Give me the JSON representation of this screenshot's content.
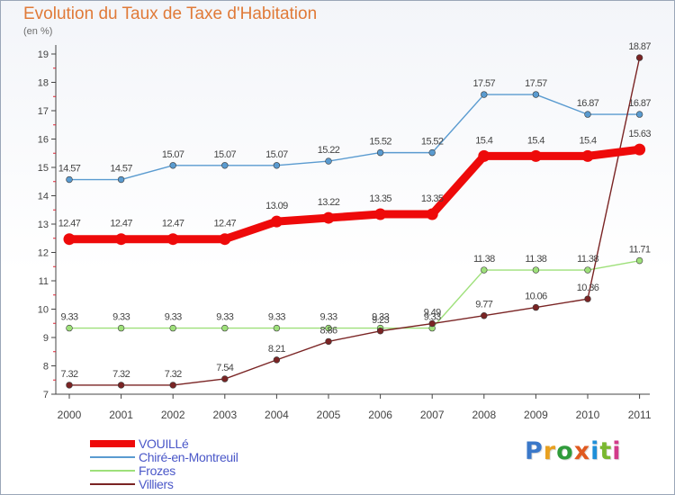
{
  "title": "Evolution du Taux de Taxe d'Habitation",
  "unit": "(en %)",
  "logo": {
    "text": "Proxiti",
    "letter_colors": [
      "#3a78c9",
      "#e8a020",
      "#2f9b3b",
      "#e05a20",
      "#1f8fd8",
      "#7ab830",
      "#d23b8a"
    ]
  },
  "chart_data": {
    "type": "line",
    "x": [
      "2000",
      "2001",
      "2002",
      "2003",
      "2004",
      "2005",
      "2006",
      "2007",
      "2008",
      "2009",
      "2010",
      "2011"
    ],
    "yticks": [
      "7",
      "8",
      "9",
      "10",
      "11",
      "12",
      "13",
      "14",
      "15",
      "16",
      "17",
      "18",
      "19"
    ],
    "ylim": [
      7,
      19
    ],
    "grid": false,
    "legend_position": "bottom-left",
    "series": [
      {
        "name": "Chiré-en-Montreuil",
        "color": "#5a9bd0",
        "values": [
          14.57,
          14.57,
          15.07,
          15.07,
          15.07,
          15.22,
          15.52,
          15.52,
          17.57,
          17.57,
          16.87,
          16.87
        ],
        "labels": [
          "14.57",
          "14.57",
          "15.07",
          "15.07",
          "15.07",
          "15.22",
          "15.52",
          "15.52",
          "17.57",
          "17.57",
          "16.87",
          "16.87"
        ]
      },
      {
        "name": "Frozes",
        "color": "#9ee07a",
        "values": [
          9.33,
          9.33,
          9.33,
          9.33,
          9.33,
          9.33,
          9.33,
          9.33,
          11.38,
          11.38,
          11.38,
          11.71
        ],
        "labels": [
          "9.33",
          "9.33",
          "9.33",
          "9.33",
          "9.33",
          "9.33",
          "9.33",
          "9.33",
          "11.38",
          "11.38",
          "11.38",
          "11.71"
        ]
      },
      {
        "name": "Villiers",
        "color": "#7a2424",
        "values": [
          7.32,
          7.32,
          7.32,
          7.54,
          8.21,
          8.86,
          9.23,
          9.49,
          9.77,
          10.06,
          10.36,
          18.87
        ],
        "labels": [
          "7.32",
          "7.32",
          "7.32",
          "7.54",
          "8.21",
          "8.86",
          "9.23",
          "9.49",
          "9.77",
          "10.06",
          "10.36",
          "18.87"
        ]
      },
      {
        "name": "VOUILLé",
        "color": "#ee0a0a",
        "values": [
          12.47,
          12.47,
          12.47,
          12.47,
          13.09,
          13.22,
          13.35,
          13.35,
          15.4,
          15.4,
          15.4,
          15.63
        ],
        "labels": [
          "12.47",
          "12.47",
          "12.47",
          "12.47",
          "13.09",
          "13.22",
          "13.35",
          "13.35",
          "15.4",
          "15.4",
          "15.4",
          "15.63"
        ]
      }
    ],
    "legend": [
      {
        "name": "VOUILLé",
        "color": "#ee0a0a"
      },
      {
        "name": "Chiré-en-Montreuil",
        "color": "#5a9bd0"
      },
      {
        "name": "Frozes",
        "color": "#9ee07a"
      },
      {
        "name": "Villiers",
        "color": "#7a2424"
      }
    ]
  }
}
